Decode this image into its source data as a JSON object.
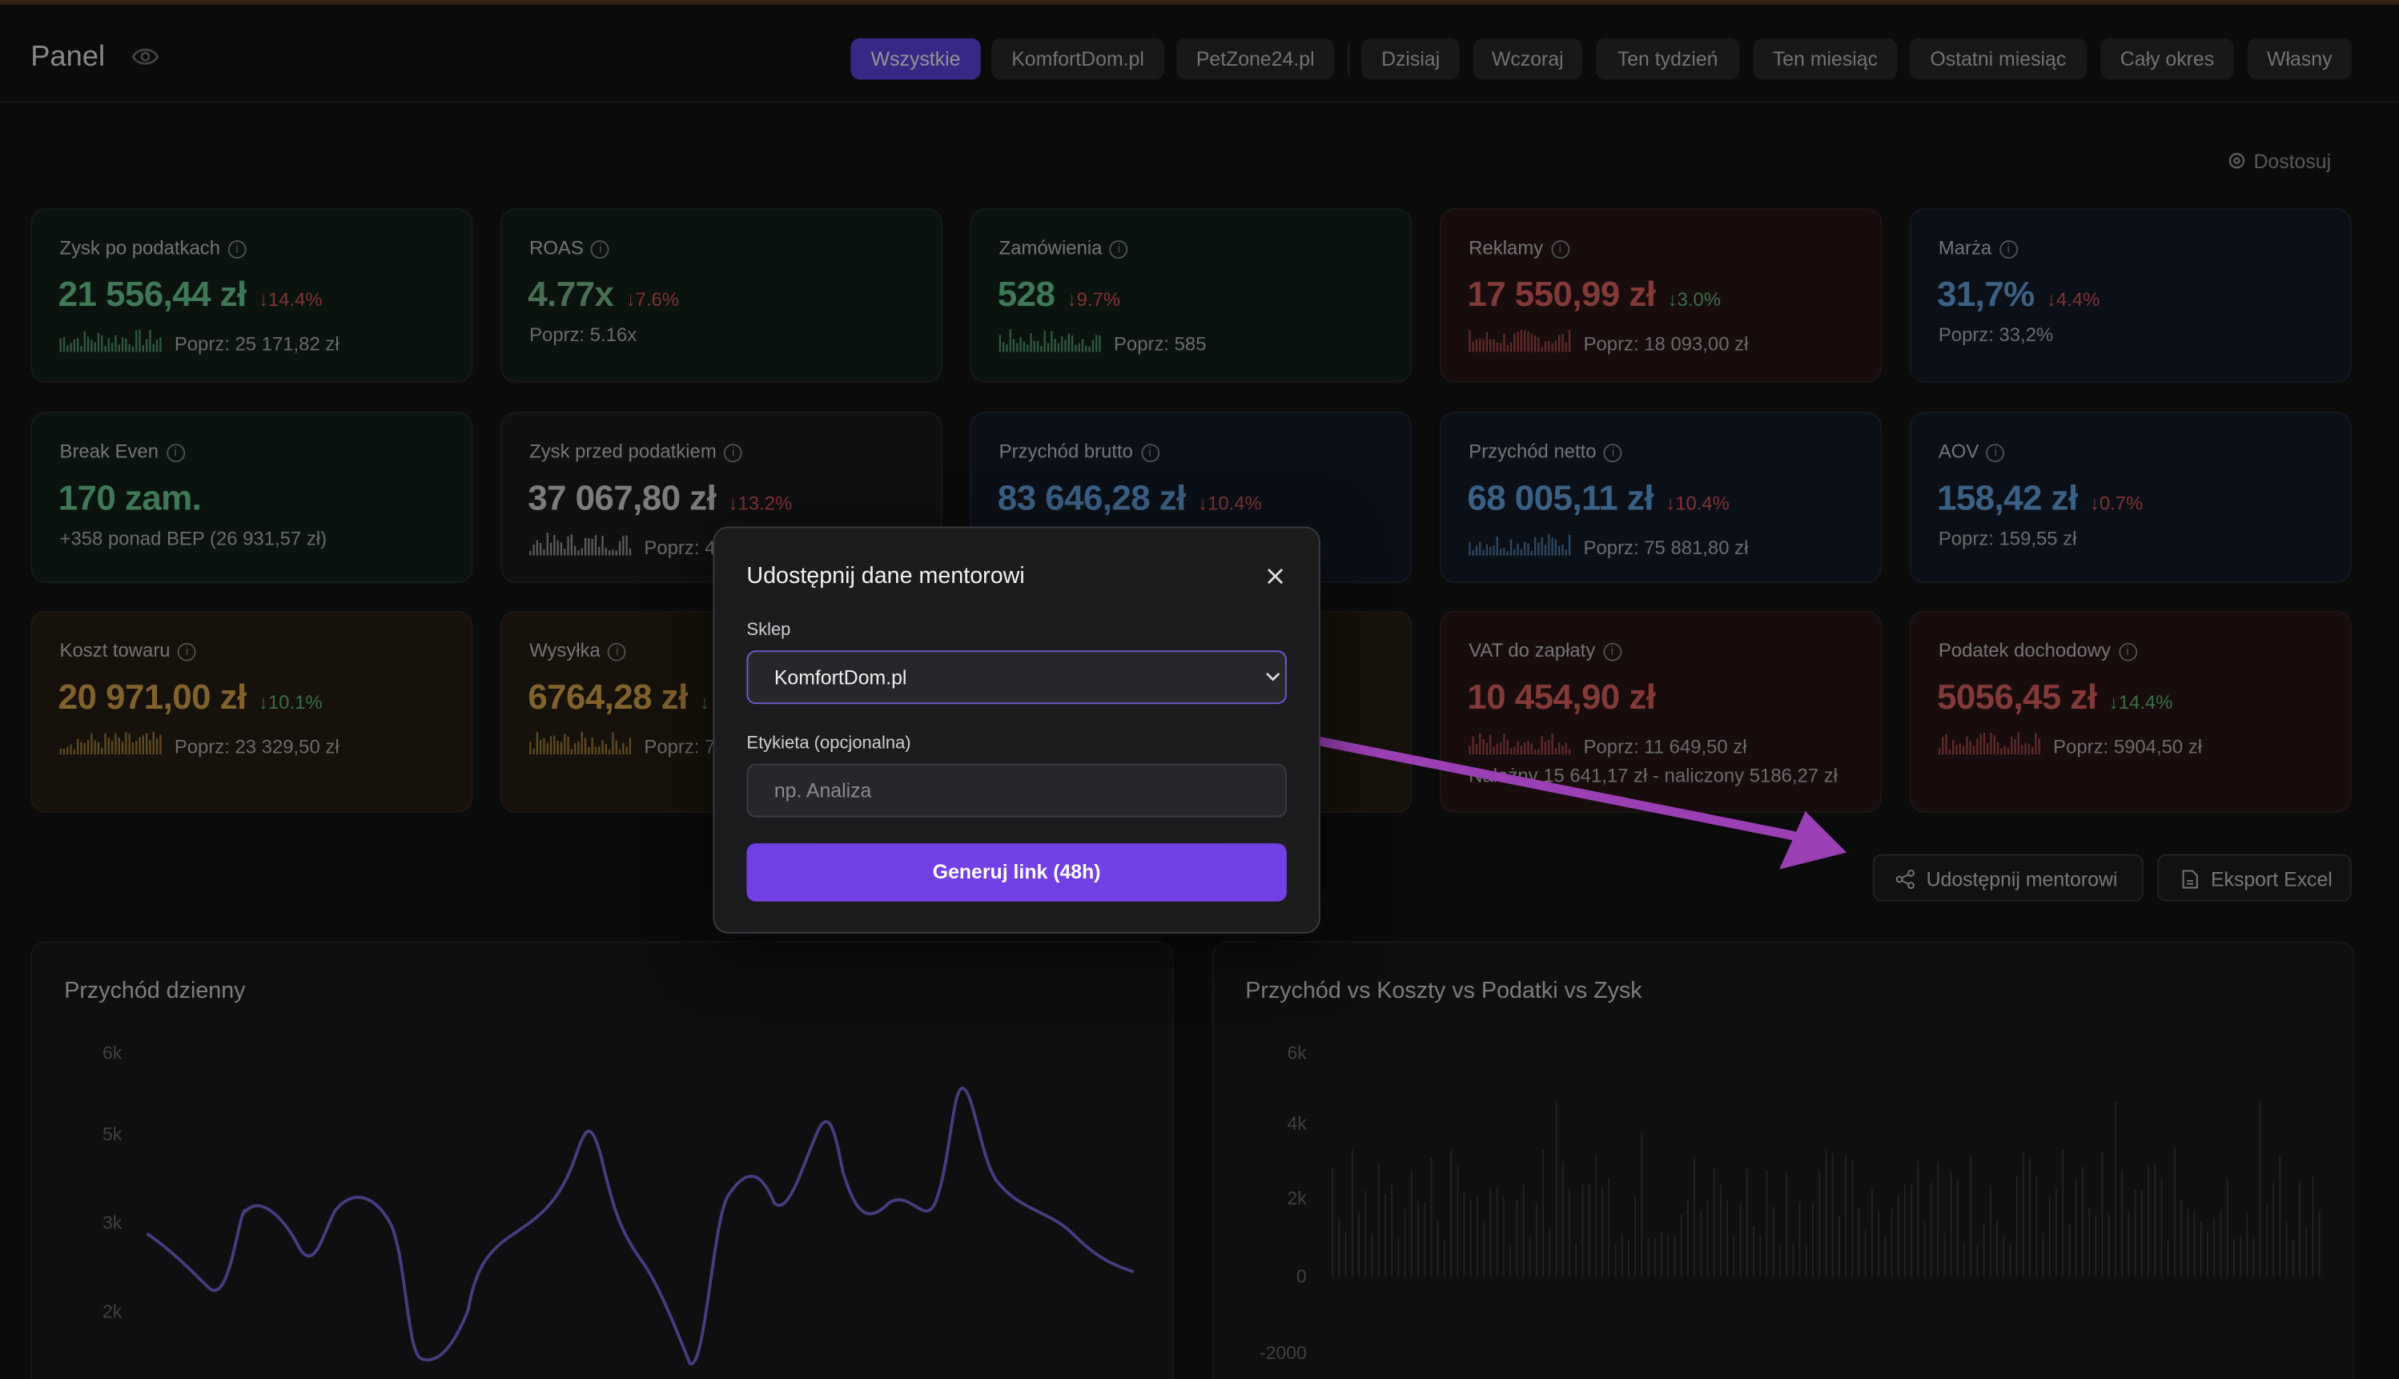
{
  "header": {
    "title": "Panel"
  },
  "filters": {
    "stores": [
      "Wszystkie",
      "KomfortDom.pl",
      "PetZone24.pl"
    ],
    "periods": [
      "Dzisiaj",
      "Wczoraj",
      "Ten tydzień",
      "Ten miesiąc",
      "Ostatni miesiąc",
      "Cały okres",
      "Własny"
    ]
  },
  "customize": "Dostosuj",
  "cards": [
    {
      "label": "Zysk po podatkach",
      "value": "21 556,44 zł",
      "change": "↓14.4%",
      "previous": "Poprz: 25 171,82 zł",
      "color": "#6bcf95",
      "change_color": "#e0565b",
      "tone": "#142219",
      "sparkline": true
    },
    {
      "label": "ROAS",
      "value": "4.77x",
      "change": "↓7.6%",
      "previous": "Poprz: 5.16x",
      "color": "#7fbf8f",
      "change_color": "#e0565b",
      "tone": "#142219"
    },
    {
      "label": "Zamówienia",
      "value": "528",
      "change": "↓9.7%",
      "previous": "Poprz: 585",
      "color": "#6bcf95",
      "change_color": "#e0565b",
      "tone": "#142219",
      "sparkline": true
    },
    {
      "label": "Reklamy",
      "value": "17 550,99 zł",
      "change": "↓3.0%",
      "previous": "Poprz: 18 093,00 zł",
      "color": "#e0625f",
      "change_color": "#5fc07a",
      "tone": "#2a1616",
      "sparkline": true
    },
    {
      "label": "Marża",
      "value": "31,7%",
      "change": "↓4.4%",
      "previous": "Poprz: 33,2%",
      "color": "#66a6e6",
      "change_color": "#e0565b",
      "tone": "#141d2a"
    },
    {
      "label": "Break Even",
      "value": "170 zam.",
      "previous": "+358 ponad BEP (26 931,57 zł)",
      "color": "#6bcf95",
      "tone": "#142219"
    },
    {
      "label": "Zysk przed podatkiem",
      "value": "37 067,80 zł",
      "change": "↓13.2%",
      "previous": "Poprz: 4",
      "color": "#d6d6d6",
      "change_color": "#e0565b",
      "tone": "#1c1c1f",
      "sparkline": true
    },
    {
      "label": "Przychód brutto",
      "value": "83 646,28 zł",
      "change": "↓10.4%",
      "color": "#66a6e6",
      "change_color": "#e0565b",
      "tone": "#141d2a"
    },
    {
      "label": "Przychód netto",
      "value": "68 005,11 zł",
      "change": "↓10.4%",
      "previous": "Poprz: 75 881,80 zł",
      "color": "#66a6e6",
      "change_color": "#e0565b",
      "tone": "#141d2a",
      "sparkline": true
    },
    {
      "label": "AOV",
      "value": "158,42 zł",
      "change": "↓0.7%",
      "previous": "Poprz: 159,55 zł",
      "color": "#66a6e6",
      "change_color": "#e0565b",
      "tone": "#141d2a"
    },
    {
      "label": "Koszt towaru",
      "value": "20 971,00 zł",
      "change": "↓10.1%",
      "previous": "Poprz: 23 329,50 zł",
      "color": "#e0a94c",
      "change_color": "#5fc07a",
      "tone": "#261e12",
      "sparkline": true
    },
    {
      "label": "Wysyłka",
      "value": "6764,28 zł",
      "change": "↓",
      "previous": "Poprz: 7",
      "color": "#e0a94c",
      "change_color": "#5fc07a",
      "tone": "#261e12",
      "sparkline": true
    },
    {
      "label": "VAT do zapłaty",
      "value": "10 454,90 zł",
      "previous": "Poprz: 11 649,50 zł",
      "note": "Należny 15 641,17 zł - naliczony 5186,27 zł",
      "color": "#e0625f",
      "tone": "#2a1616",
      "sparkline": true
    },
    {
      "label": "Podatek dochodowy",
      "value": "5056,45 zł",
      "change": "↓14.4%",
      "previous": "Poprz: 5904,50 zł",
      "color": "#e0625f",
      "change_color": "#5fc07a",
      "tone": "#2a1616",
      "sparkline": true
    }
  ],
  "actions": [
    "Udostępnij mentorowi",
    "Eksport Excel"
  ],
  "charts": [
    {
      "title": "Przychód dzienny",
      "yticks": [
        "6k",
        "5k",
        "3k",
        "2k"
      ]
    },
    {
      "title": "Przychód vs Koszty vs Podatki vs Zysk",
      "yticks": [
        "6k",
        "4k",
        "2k",
        "0",
        "-2000"
      ]
    }
  ],
  "modal": {
    "title": "Udostępnij dane mentorowi",
    "store_label": "Sklep",
    "store_value": "KomfortDom.pl",
    "tag_label": "Etykieta (opcjonalna)",
    "tag_placeholder": "np. Analiza",
    "submit": "Generuj link (48h)"
  }
}
